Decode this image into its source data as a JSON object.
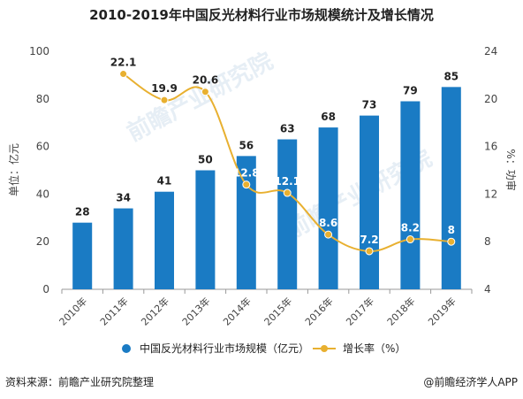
{
  "title": "2010-2019年中国反光材料行业市场规模统计及增长情况",
  "footer": {
    "source": "资料来源：前瞻产业研究院整理",
    "brand": "@前瞻经济学人APP"
  },
  "legend": {
    "bar_label": "中国反光材料行业市场规模（亿元）",
    "line_label": "增长率（%）"
  },
  "watermark": "前瞻产业研究院",
  "colors": {
    "bar": "#1a7bc4",
    "line": "#e8b030",
    "line_label_bg": "#1a7bc4"
  },
  "chart_data": {
    "type": "bar",
    "categories": [
      "2010年",
      "2011年",
      "2012年",
      "2013年",
      "2014年",
      "2015年",
      "2016年",
      "2017年",
      "2018年",
      "2019年"
    ],
    "series": [
      {
        "name": "中国反光材料行业市场规模（亿元）",
        "type": "bar",
        "axis": "left",
        "values": [
          28,
          34,
          41,
          50,
          56,
          63,
          68,
          73,
          79,
          85
        ]
      },
      {
        "name": "增长率（%）",
        "type": "line",
        "axis": "right",
        "values": [
          null,
          22.1,
          19.9,
          20.6,
          12.8,
          12.1,
          8.6,
          7.2,
          8.2,
          8
        ]
      }
    ],
    "ylabel": "单位：亿元",
    "y2label": "%：功审",
    "ylim": [
      0,
      100
    ],
    "y2lim": [
      4,
      24
    ],
    "yticks": [
      0,
      20,
      40,
      60,
      80,
      100
    ],
    "y2ticks": [
      4,
      8,
      12,
      16,
      20,
      24
    ],
    "legend_position": "bottom"
  }
}
